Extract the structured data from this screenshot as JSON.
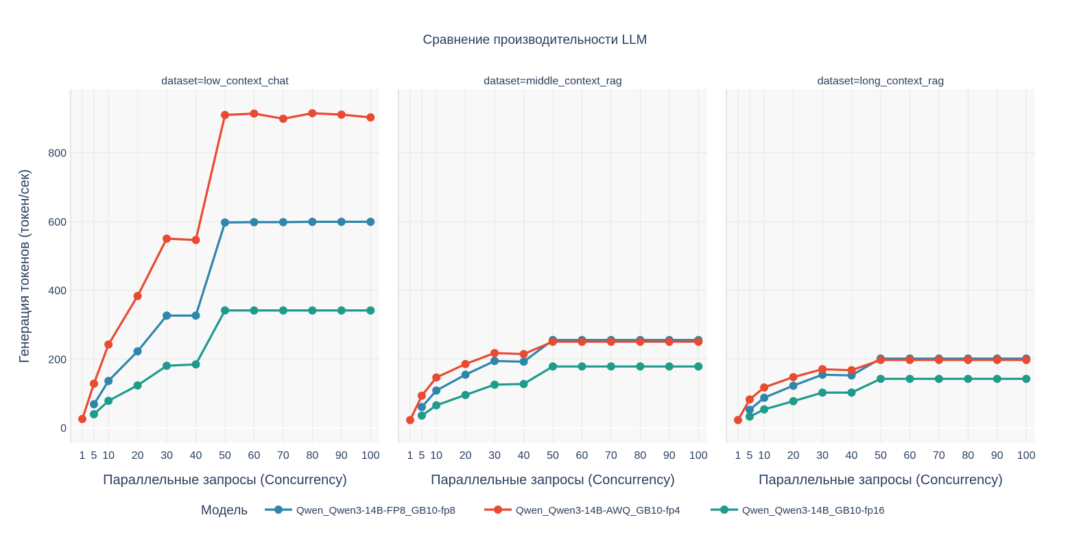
{
  "chart_data": {
    "type": "line",
    "title": "Сравнение производительности LLM",
    "xlabel": "Параллельные запросы (Concurrency)",
    "ylabel": "Генерация токенов (токен/сек)",
    "x": [
      1,
      5,
      10,
      20,
      30,
      40,
      50,
      60,
      70,
      80,
      90,
      100
    ],
    "x_tick_labels": [
      "1",
      "5",
      "10",
      "20",
      "30",
      "40",
      "50",
      "60",
      "70",
      "80",
      "90",
      "100"
    ],
    "ylim": [
      -45,
      985
    ],
    "y_ticks": [
      0,
      200,
      400,
      600,
      800
    ],
    "grid": true,
    "legend": {
      "title": "Модель",
      "position": "bottom"
    },
    "series_styles": [
      {
        "name": "Qwen_Qwen3-14B-FP8_GB10-fp8",
        "color": "#2e86ab"
      },
      {
        "name": "Qwen_Qwen3-14B-AWQ_GB10-fp4",
        "color": "#e84a32"
      },
      {
        "name": "Qwen_Qwen3-14B_GB10-fp16",
        "color": "#1f9b8c"
      }
    ],
    "panels": [
      {
        "title": "dataset=low_context_chat",
        "series": [
          {
            "name": "Qwen_Qwen3-14B-FP8_GB10-fp8",
            "x": [
              5,
              10,
              20,
              30,
              40,
              50,
              60,
              70,
              80,
              90,
              100
            ],
            "values": [
              68,
              136,
              222,
              326,
              326,
              597,
              598,
              598,
              599,
              599,
              599
            ]
          },
          {
            "name": "Qwen_Qwen3-14B-AWQ_GB10-fp4",
            "x": [
              1,
              5,
              10,
              20,
              30,
              40,
              50,
              60,
              70,
              80,
              90,
              100
            ],
            "values": [
              25,
              128,
              242,
              383,
              550,
              546,
              910,
              914,
              899,
              915,
              911,
              903
            ]
          },
          {
            "name": "Qwen_Qwen3-14B_GB10-fp16",
            "x": [
              5,
              10,
              20,
              30,
              40,
              50,
              60,
              70,
              80,
              90,
              100
            ],
            "values": [
              39,
              78,
              123,
              180,
              184,
              341,
              341,
              341,
              341,
              341,
              341
            ]
          }
        ]
      },
      {
        "title": "dataset=middle_context_rag",
        "series": [
          {
            "name": "Qwen_Qwen3-14B-FP8_GB10-fp8",
            "x": [
              5,
              10,
              20,
              30,
              40,
              50,
              60,
              70,
              80,
              90,
              100
            ],
            "values": [
              60,
              108,
              154,
              194,
              192,
              255,
              255,
              255,
              255,
              255,
              255
            ]
          },
          {
            "name": "Qwen_Qwen3-14B-AWQ_GB10-fp4",
            "x": [
              1,
              5,
              10,
              20,
              30,
              40,
              50,
              60,
              70,
              80,
              90,
              100
            ],
            "values": [
              22,
              93,
              146,
              185,
              217,
              214,
              250,
              250,
              250,
              250,
              250,
              250
            ]
          },
          {
            "name": "Qwen_Qwen3-14B_GB10-fp16",
            "x": [
              5,
              10,
              20,
              30,
              40,
              50,
              60,
              70,
              80,
              90,
              100
            ],
            "values": [
              35,
              65,
              95,
              125,
              127,
              178,
              178,
              178,
              178,
              178,
              178
            ]
          }
        ]
      },
      {
        "title": "dataset=long_context_rag",
        "series": [
          {
            "name": "Qwen_Qwen3-14B-FP8_GB10-fp8",
            "x": [
              5,
              10,
              20,
              30,
              40,
              50,
              60,
              70,
              80,
              90,
              100
            ],
            "values": [
              52,
              87,
              122,
              154,
              152,
              201,
              201,
              201,
              201,
              201,
              201
            ]
          },
          {
            "name": "Qwen_Qwen3-14B-AWQ_GB10-fp4",
            "x": [
              1,
              5,
              10,
              20,
              30,
              40,
              50,
              60,
              70,
              80,
              90,
              100
            ],
            "values": [
              22,
              82,
              117,
              147,
              170,
              167,
              197,
              197,
              197,
              197,
              197,
              197
            ]
          },
          {
            "name": "Qwen_Qwen3-14B_GB10-fp16",
            "x": [
              5,
              10,
              20,
              30,
              40,
              50,
              60,
              70,
              80,
              90,
              100
            ],
            "values": [
              32,
              53,
              77,
              102,
              102,
              142,
              142,
              142,
              142,
              142,
              142
            ]
          }
        ]
      }
    ]
  }
}
